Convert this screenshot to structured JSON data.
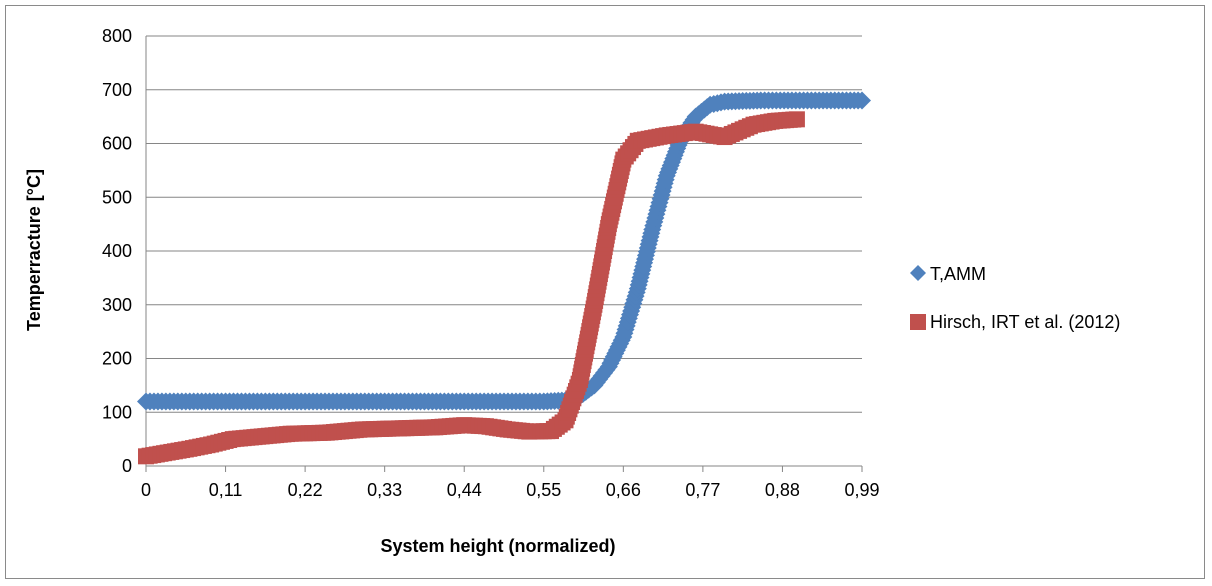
{
  "chart_data": {
    "type": "scatter",
    "title": "",
    "xlabel": "System height (normalized)",
    "ylabel": "Temperracture [°C]",
    "xlim": [
      0,
      0.99
    ],
    "ylim": [
      0,
      800
    ],
    "x_ticks": [
      "0",
      "0,11",
      "0,22",
      "0,33",
      "0,44",
      "0,55",
      "0,66",
      "0,77",
      "0,88",
      "0,99"
    ],
    "y_ticks": [
      "0",
      "100",
      "200",
      "300",
      "400",
      "500",
      "600",
      "700",
      "800"
    ],
    "grid": "horizontal",
    "legend_position": "right",
    "series": [
      {
        "name": "T,AMM",
        "marker": "diamond",
        "color": "#4F81BD",
        "points": [
          [
            0,
            120
          ],
          [
            0.55,
            120
          ],
          [
            0.58,
            122
          ],
          [
            0.6,
            130
          ],
          [
            0.62,
            150
          ],
          [
            0.64,
            185
          ],
          [
            0.66,
            240
          ],
          [
            0.68,
            330
          ],
          [
            0.7,
            440
          ],
          [
            0.72,
            540
          ],
          [
            0.74,
            610
          ],
          [
            0.76,
            650
          ],
          [
            0.78,
            672
          ],
          [
            0.8,
            678
          ],
          [
            0.85,
            680
          ],
          [
            0.99,
            680
          ]
        ]
      },
      {
        "name": "Hirsch, IRT et al. (2012)",
        "marker": "square",
        "color": "#C0504D",
        "points": [
          [
            0,
            18
          ],
          [
            0.03,
            25
          ],
          [
            0.06,
            32
          ],
          [
            0.09,
            40
          ],
          [
            0.12,
            50
          ],
          [
            0.16,
            55
          ],
          [
            0.2,
            60
          ],
          [
            0.25,
            62
          ],
          [
            0.3,
            68
          ],
          [
            0.35,
            70
          ],
          [
            0.4,
            72
          ],
          [
            0.44,
            76
          ],
          [
            0.47,
            74
          ],
          [
            0.5,
            68
          ],
          [
            0.53,
            64
          ],
          [
            0.56,
            65
          ],
          [
            0.58,
            85
          ],
          [
            0.6,
            160
          ],
          [
            0.62,
            300
          ],
          [
            0.64,
            450
          ],
          [
            0.66,
            570
          ],
          [
            0.68,
            605
          ],
          [
            0.72,
            615
          ],
          [
            0.76,
            622
          ],
          [
            0.8,
            612
          ],
          [
            0.84,
            635
          ],
          [
            0.87,
            642
          ],
          [
            0.9,
            645
          ]
        ]
      }
    ]
  }
}
